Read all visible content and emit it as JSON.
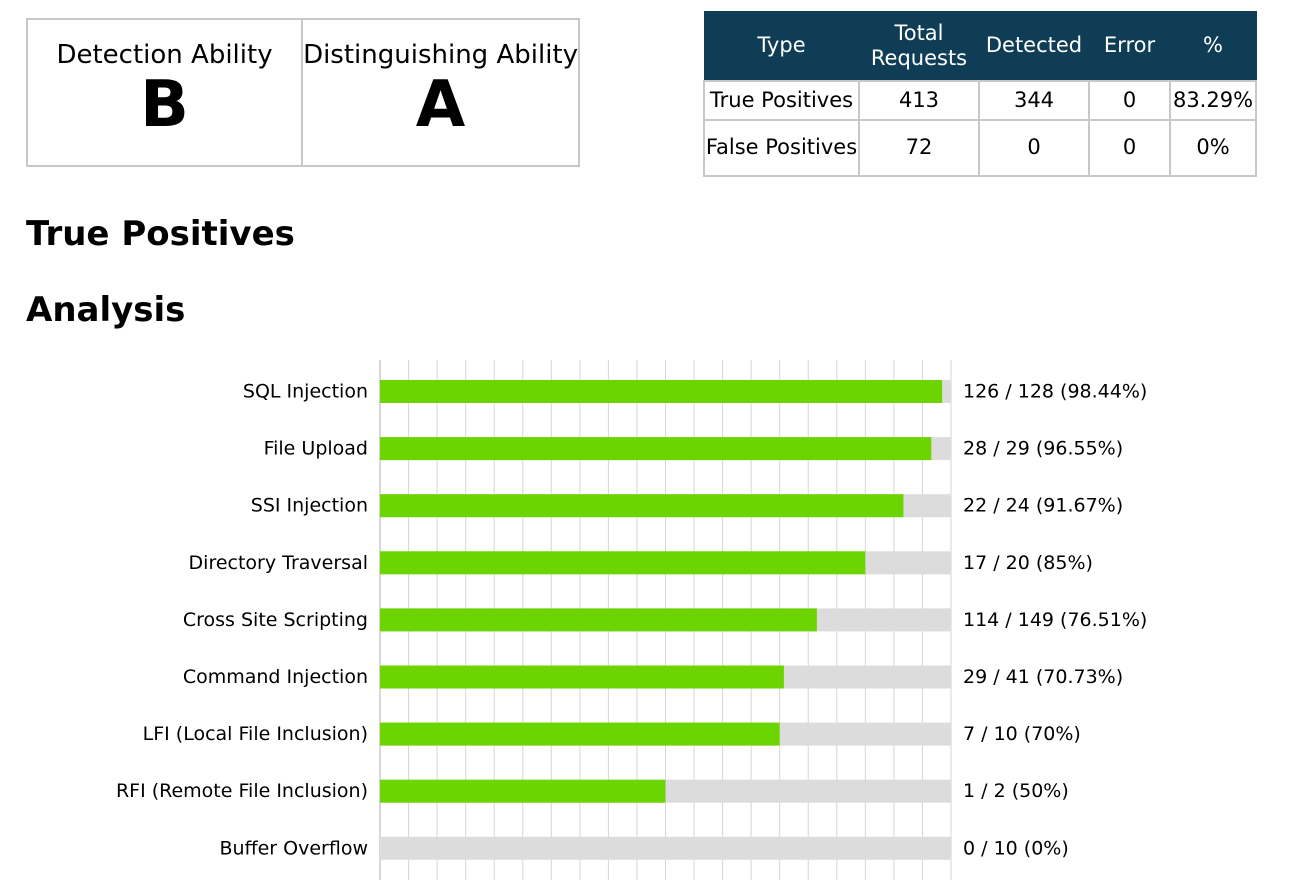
{
  "grades": {
    "detection": {
      "title": "Detection Ability",
      "grade": "B"
    },
    "distinguishing": {
      "title": "Distinguishing Ability",
      "grade": "A"
    }
  },
  "summary": {
    "headers": [
      "Type",
      "Total Requests",
      "Detected",
      "Error",
      "%"
    ],
    "rows": [
      [
        "True Positives",
        "413",
        "344",
        "0",
        "83.29%"
      ],
      [
        "False Positives",
        "72",
        "0",
        "0",
        "0%"
      ]
    ],
    "header_bg": "#0f3d55"
  },
  "headings": {
    "true_positives": "True Positives",
    "analysis": "Analysis"
  },
  "chart_data": {
    "type": "bar",
    "orientation": "horizontal",
    "bar_color": "#6cd400",
    "track_color": "#dcdcdc",
    "categories": [
      "SQL Injection",
      "File Upload",
      "SSI Injection",
      "Directory Traversal",
      "Cross Site Scripting",
      "Command Injection",
      "LFI (Local File Inclusion)",
      "RFI (Remote File Inclusion)",
      "Buffer Overflow"
    ],
    "detected": [
      126,
      28,
      22,
      17,
      114,
      29,
      7,
      1,
      0
    ],
    "total": [
      128,
      29,
      24,
      20,
      149,
      41,
      10,
      2,
      10
    ],
    "values": [
      98.44,
      96.55,
      91.67,
      85,
      76.51,
      70.73,
      70,
      50,
      0
    ],
    "labels": [
      "126 / 128 (98.44%)",
      "28 / 29 (96.55%)",
      "22 / 24 (91.67%)",
      "17 / 20 (85%)",
      "114 / 149 (76.51%)",
      "29 / 41 (70.73%)",
      "7 / 10 (70%)",
      "1 / 2 (50%)",
      "0 / 10 (0%)"
    ],
    "xlim": [
      0,
      100
    ],
    "grid": true
  }
}
